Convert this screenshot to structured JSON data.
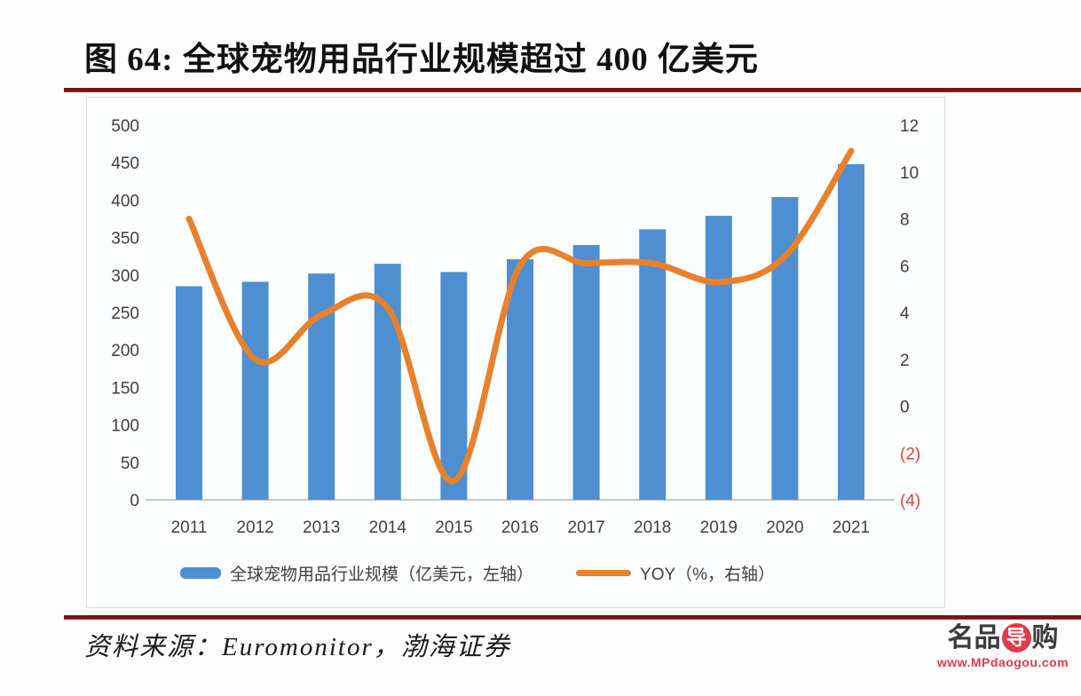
{
  "page": {
    "title": "图 64: 全球宠物用品行业规模超过 400 亿美元",
    "source": "资料来源：Euromonitor，渤海证券"
  },
  "legend": {
    "bars_label": "全球宠物用品行业规模（亿美元，左轴）",
    "line_label": "YOY（%，右轴）"
  },
  "watermark": {
    "brand_left": "名品",
    "brand_circle": "导",
    "brand_right": "购",
    "url": "www.MPdaogou.com"
  },
  "colors": {
    "bar": "#4E8FD1",
    "line": "#E8812C",
    "rule": "#7B1113",
    "axis_text": "#3F3F3F",
    "negative_tick": "#D9453C",
    "baseline": "#C8C8C8",
    "watermark_red": "#E23A4C"
  },
  "chart_data": {
    "type": "bar+line",
    "title": "全球宠物用品行业规模超过 400 亿美元",
    "categories": [
      "2011",
      "2012",
      "2013",
      "2014",
      "2015",
      "2016",
      "2017",
      "2018",
      "2019",
      "2020",
      "2021"
    ],
    "series": [
      {
        "name": "全球宠物用品行业规模（亿美元，左轴）",
        "type": "bar",
        "axis": "left",
        "values": [
          285,
          291,
          302,
          315,
          304,
          321,
          340,
          361,
          379,
          404,
          448
        ]
      },
      {
        "name": "YOY（%，右轴）",
        "type": "line",
        "axis": "right",
        "values": [
          8.0,
          2.0,
          3.9,
          4.2,
          -3.2,
          6.0,
          6.1,
          6.1,
          5.3,
          6.4,
          10.9
        ]
      }
    ],
    "left_axis": {
      "min": 0,
      "max": 500,
      "step": 50,
      "ticks": [
        0,
        50,
        100,
        150,
        200,
        250,
        300,
        350,
        400,
        450,
        500
      ]
    },
    "right_axis": {
      "min": -4,
      "max": 12,
      "step": 2,
      "ticks": [
        -4,
        -2,
        0,
        2,
        4,
        6,
        8,
        10,
        12
      ],
      "tick_labels": [
        "(4)",
        "(2)",
        "0",
        "2",
        "4",
        "6",
        "8",
        "10",
        "12"
      ],
      "negative_style": "red-parentheses"
    },
    "grid": false,
    "legend_position": "bottom"
  }
}
